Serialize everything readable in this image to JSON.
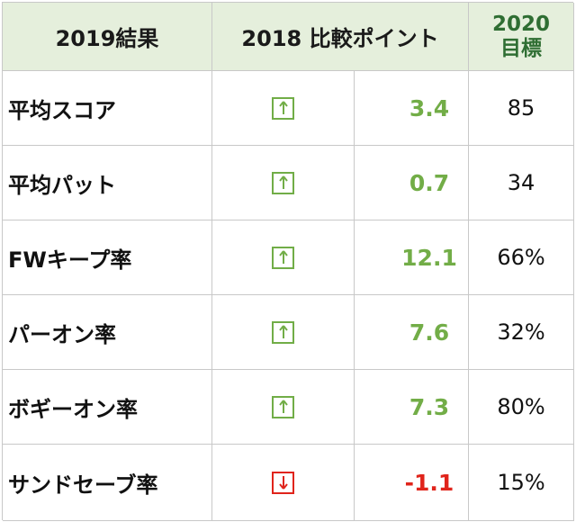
{
  "header": {
    "col1": "2019結果",
    "col2": "2018 比較ポイント",
    "col3_line1": "2020",
    "col3_line2": "目標"
  },
  "colors": {
    "header_bg": "#e5efdc",
    "up": "#72ad47",
    "down": "#e0241b"
  },
  "rows": [
    {
      "label": "平均スコア",
      "direction": "up",
      "icon": "arrow-up-icon",
      "diff": "3.4",
      "target": "85"
    },
    {
      "label": "平均パット",
      "direction": "up",
      "icon": "arrow-up-icon",
      "diff": "0.7",
      "target": "34"
    },
    {
      "label": "FWキープ率",
      "direction": "up",
      "icon": "arrow-up-icon",
      "diff": "12.1",
      "target": "66%"
    },
    {
      "label": "パーオン率",
      "direction": "up",
      "icon": "arrow-up-icon",
      "diff": "7.6",
      "target": "32%"
    },
    {
      "label": "ボギーオン率",
      "direction": "up",
      "icon": "arrow-up-icon",
      "diff": "7.3",
      "target": "80%"
    },
    {
      "label": "サンドセーブ率",
      "direction": "down",
      "icon": "arrow-down-icon",
      "diff": "-1.1",
      "target": "15%"
    }
  ]
}
